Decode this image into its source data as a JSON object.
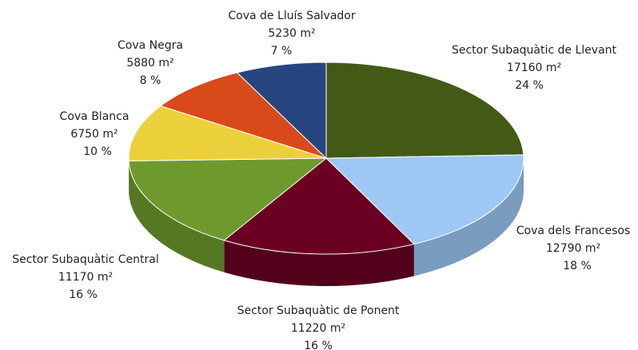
{
  "chart_data": {
    "type": "pie3d",
    "categories": [
      "Sector Subaquàtic de Llevant",
      "Cova dels Francesos",
      "Sector Subaquàtic de Ponent",
      "Sector Subaquàtic Central",
      "Cova Blanca",
      "Cova Negra",
      "Cova de Lluís Salvador"
    ],
    "values": [
      17160,
      12790,
      11220,
      11170,
      6750,
      5880,
      5230
    ],
    "value_labels": [
      "17160  m²",
      "12790  m²",
      "11220  m²",
      "11170  m²",
      "6750  m²",
      "5880  m²",
      "5230  m²"
    ],
    "percent_labels": [
      "24 %",
      "18 %",
      "16 %",
      "16 %",
      "10 %",
      "8 %",
      "7 %"
    ],
    "colors": [
      "#435a17",
      "#9dc8f5",
      "#6b0022",
      "#6e9a2d",
      "#ecd03b",
      "#d94a1a",
      "#27467f"
    ]
  }
}
